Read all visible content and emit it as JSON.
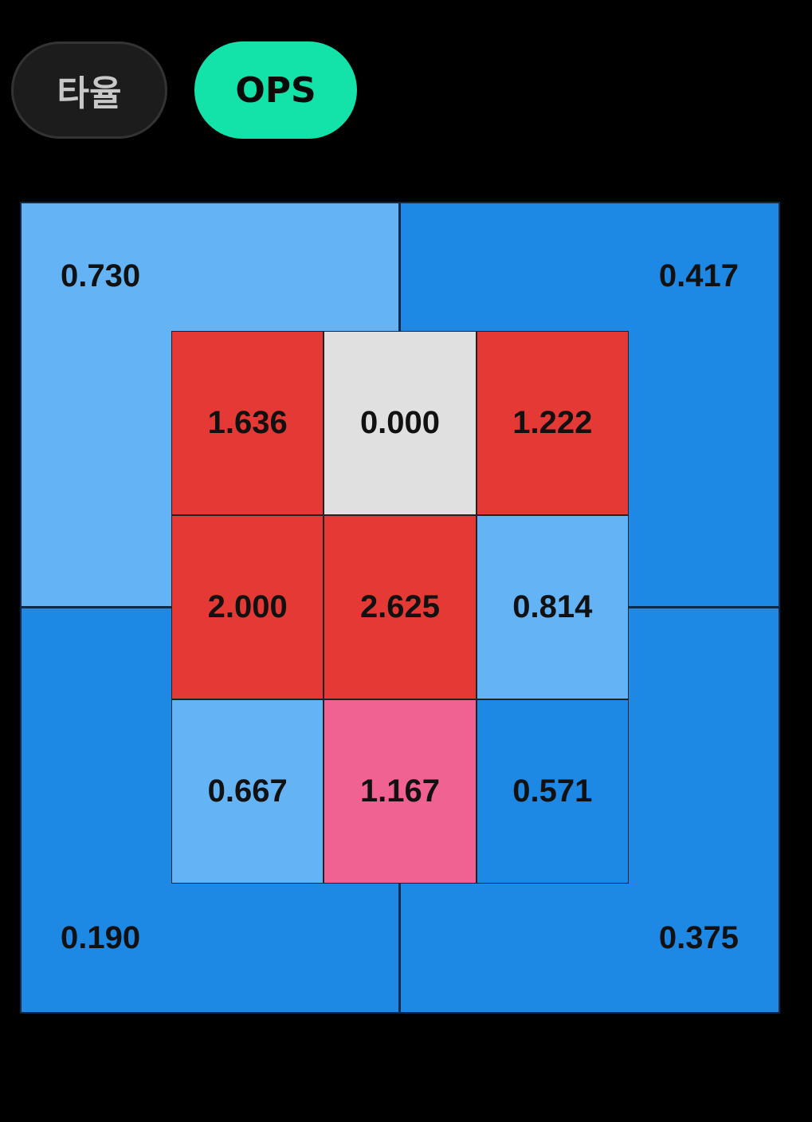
{
  "tabs": [
    {
      "label": "타율",
      "selected": false
    },
    {
      "label": "OPS",
      "selected": true
    }
  ],
  "outer_zones": {
    "top_left": "0.730",
    "top_right": "0.417",
    "bottom_left": "0.190",
    "bottom_right": "0.375"
  },
  "inner_zones": [
    [
      "1.636",
      "0.000",
      "1.222"
    ],
    [
      "2.000",
      "2.625",
      "0.814"
    ],
    [
      "0.667",
      "1.167",
      "0.571"
    ]
  ]
}
